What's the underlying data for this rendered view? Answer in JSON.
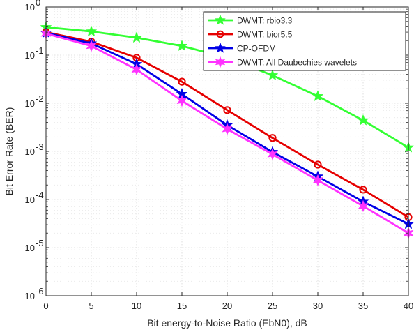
{
  "chart_data": {
    "type": "line",
    "xlabel": "Bit energy-to-Noise Ratio (EbN0), dB",
    "ylabel": "Bit Error Rate (BER)",
    "xlim": [
      0,
      40
    ],
    "ylim": [
      1e-06,
      1
    ],
    "yscale": "log",
    "grid": true,
    "legend_position": "top-right",
    "x": [
      0,
      5,
      10,
      15,
      20,
      25,
      30,
      35,
      40
    ],
    "x_ticks": [
      "0",
      "5",
      "10",
      "15",
      "20",
      "25",
      "30",
      "35",
      "40"
    ],
    "y_ticks": [
      {
        "base": "10",
        "exp": "0"
      },
      {
        "base": "10",
        "exp": "-1"
      },
      {
        "base": "10",
        "exp": "-2"
      },
      {
        "base": "10",
        "exp": "-3"
      },
      {
        "base": "10",
        "exp": "-4"
      },
      {
        "base": "10",
        "exp": "-5"
      },
      {
        "base": "10",
        "exp": "-6"
      }
    ],
    "series": [
      {
        "name": "DWMT: rbio3.3",
        "color": "#33ff33",
        "marker": "star5",
        "values": [
          0.38,
          0.31,
          0.23,
          0.155,
          0.088,
          0.038,
          0.014,
          0.0044,
          0.0012
        ]
      },
      {
        "name": "DWMT: bior5.5",
        "color": "#e60000",
        "marker": "circle",
        "values": [
          0.3,
          0.19,
          0.088,
          0.028,
          0.0072,
          0.0019,
          0.00053,
          0.00016,
          4.3e-05
        ]
      },
      {
        "name": "CP-OFDM",
        "color": "#0000e6",
        "marker": "star5",
        "values": [
          0.29,
          0.175,
          0.065,
          0.0155,
          0.0035,
          0.00097,
          0.0003,
          9e-05,
          3.1e-05
        ]
      },
      {
        "name": "DWMT: All Daubechies wavelets",
        "color": "#ff33ff",
        "marker": "star6",
        "values": [
          0.28,
          0.155,
          0.05,
          0.0112,
          0.0029,
          0.00087,
          0.00025,
          7.3e-05,
          2e-05
        ]
      }
    ]
  }
}
